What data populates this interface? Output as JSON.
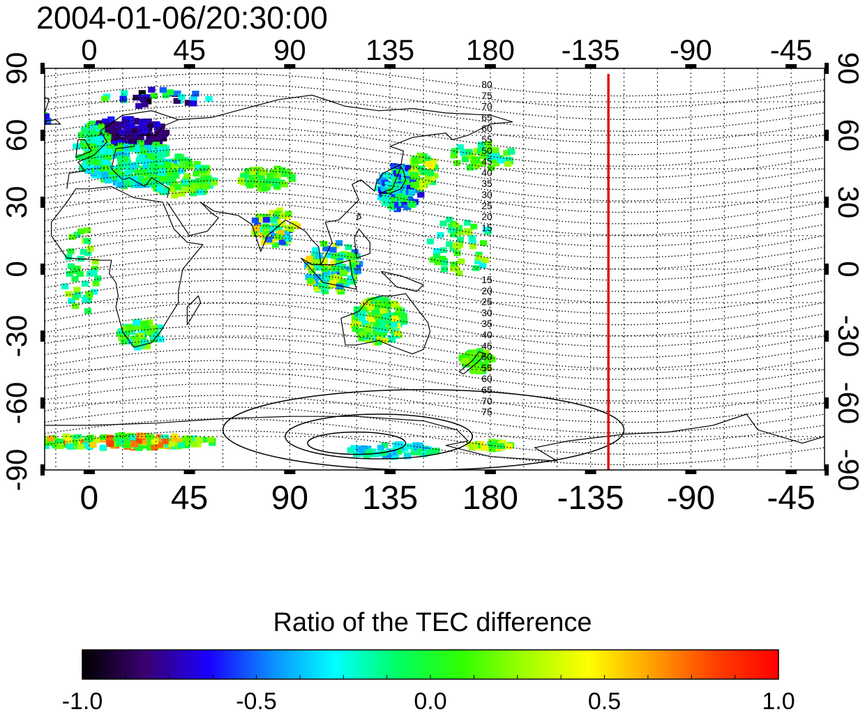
{
  "header": {
    "timestamp": "2004-01-06/20:30:00"
  },
  "map": {
    "top_lon_labels": [
      "0",
      "45",
      "90",
      "135",
      "180",
      "-135",
      "-90",
      "-45"
    ],
    "bottom_lon_labels": [
      "0",
      "45",
      "90",
      "135",
      "180",
      "-135",
      "-90",
      "-45"
    ],
    "left_lat_labels": [
      "90",
      "60",
      "30",
      "0",
      "-30",
      "-60",
      "-90"
    ],
    "right_lat_labels": [
      "90",
      "60",
      "30",
      "0",
      "-30",
      "-60",
      "-90"
    ],
    "lon_ticks": [
      0,
      45,
      90,
      135,
      180,
      225,
      270,
      315
    ],
    "lat_ticks": [
      90,
      60,
      30,
      0,
      -30,
      -60,
      -90
    ],
    "lon_range": [
      -20,
      330
    ],
    "lat_range": [
      -90,
      90
    ],
    "terminator_longitude": -127,
    "contour_labels_north": [
      "80",
      "75",
      "70",
      "65",
      "60",
      "55",
      "50",
      "45",
      "40",
      "35",
      "30",
      "25",
      "20",
      "15"
    ],
    "contour_labels_south": [
      "15",
      "20",
      "25",
      "30",
      "35",
      "40",
      "45",
      "50",
      "55",
      "60",
      "65",
      "70",
      "75"
    ],
    "colors": {
      "terminator": "#e01010",
      "grid": "#000000"
    }
  },
  "colorbar": {
    "title": "Ratio of the TEC difference",
    "range": [
      -1.0,
      1.0
    ],
    "tick_labels": [
      "-1.0",
      "-0.5",
      "0.0",
      "0.5",
      "1.0"
    ],
    "tick_values": [
      -1.0,
      -0.5,
      0.0,
      0.5,
      1.0
    ],
    "colormap": [
      "#000000",
      "#3a0070",
      "#1a00ff",
      "#0a8fff",
      "#00ffff",
      "#00ff60",
      "#30ff00",
      "#a0ff00",
      "#ffff00",
      "#ffa000",
      "#ff4000",
      "#ff0000"
    ]
  }
}
